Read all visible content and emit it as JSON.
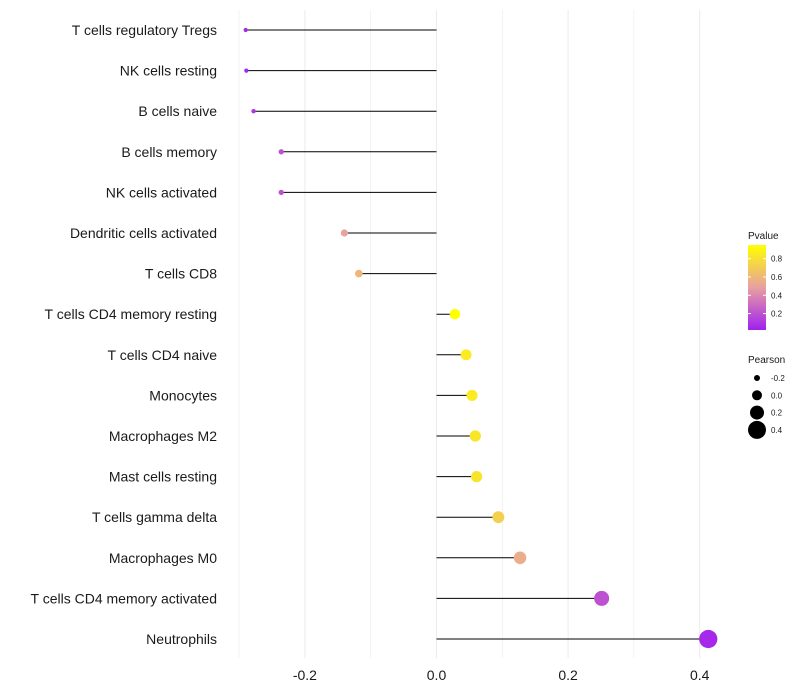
{
  "chart_data": {
    "type": "lollipop",
    "title": "",
    "xlabel": "",
    "ylabel": "",
    "xlim": [
      -0.37,
      0.43
    ],
    "x_ticks": [
      -0.2,
      0.0,
      0.2,
      0.4
    ],
    "x_tick_labels": [
      "-0.2",
      "0.0",
      "0.2",
      "0.4"
    ],
    "grid": true,
    "categories": [
      "T cells regulatory  Tregs",
      "NK cells resting",
      "B cells naive",
      "B cells memory",
      "NK cells activated",
      "Dendritic cells activated",
      "T cells CD8",
      "T cells CD4 memory resting",
      "T cells CD4 naive",
      "Monocytes",
      "Macrophages M2",
      "Mast cells resting",
      "T cells gamma delta",
      "Macrophages M0",
      "T cells CD4 memory activated",
      "Neutrophils"
    ],
    "pearson": [
      -0.29,
      -0.289,
      -0.278,
      -0.236,
      -0.236,
      -0.14,
      -0.118,
      0.028,
      0.045,
      0.054,
      0.059,
      0.061,
      0.094,
      0.127,
      0.251,
      0.413
    ],
    "pvalue": [
      0.05,
      0.05,
      0.1,
      0.2,
      0.2,
      0.5,
      0.6,
      0.95,
      0.85,
      0.85,
      0.83,
      0.82,
      0.72,
      0.55,
      0.2,
      0.05
    ],
    "color_legend": {
      "title": "Pvalue",
      "ticks": [
        0.8,
        0.6,
        0.4,
        0.2
      ],
      "tick_labels": [
        "0.8",
        "0.6",
        "0.4",
        "0.2"
      ],
      "range": [
        0.02,
        0.95
      ],
      "low_color": "#a020f0",
      "mid_color": "#e8a0a0",
      "high_color": "#ffff00"
    },
    "size_legend": {
      "title": "Pearson",
      "values": [
        -0.2,
        0.0,
        0.2,
        0.4
      ],
      "labels": [
        "-0.2",
        "0.0",
        "0.2",
        "0.4"
      ]
    },
    "segment_color": "#000000",
    "grid_color": "#ebebeb"
  }
}
